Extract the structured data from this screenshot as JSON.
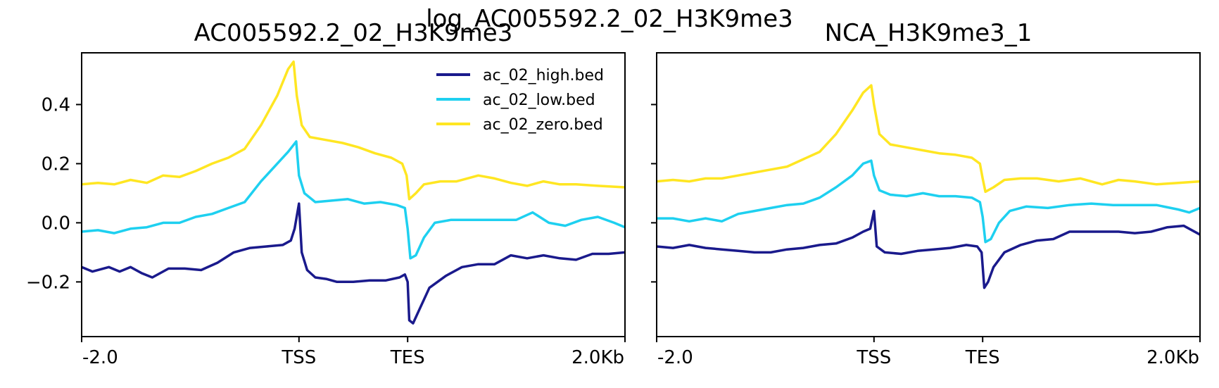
{
  "suptitle": "log_AC005592.2_02_H3K9me3",
  "chart_data": [
    {
      "type": "line",
      "title": "AC005592.2_02_H3K9me3",
      "x_tick_labels": [
        "-2.0",
        "TSS",
        "TES",
        "2.0Kb"
      ],
      "x_ticks": [
        0,
        0.4,
        0.6,
        1.0
      ],
      "xlim": [
        0,
        1
      ],
      "y_ticks": [
        -0.2,
        0.0,
        0.2,
        0.4
      ],
      "y_tick_labels": [
        "−0.2",
        "0.0",
        "0.2",
        "0.4"
      ],
      "ylim": [
        -0.385,
        0.575
      ],
      "legend": "top-right",
      "series": [
        {
          "name": "ac_02_high.bed",
          "color": "#1a1a8c",
          "points": [
            [
              0,
              -0.15
            ],
            [
              0.02,
              -0.165
            ],
            [
              0.05,
              -0.15
            ],
            [
              0.07,
              -0.165
            ],
            [
              0.09,
              -0.15
            ],
            [
              0.11,
              -0.17
            ],
            [
              0.13,
              -0.185
            ],
            [
              0.16,
              -0.155
            ],
            [
              0.19,
              -0.155
            ],
            [
              0.22,
              -0.16
            ],
            [
              0.25,
              -0.135
            ],
            [
              0.28,
              -0.1
            ],
            [
              0.31,
              -0.085
            ],
            [
              0.34,
              -0.08
            ],
            [
              0.37,
              -0.075
            ],
            [
              0.385,
              -0.06
            ],
            [
              0.392,
              -0.02
            ],
            [
              0.4,
              0.065
            ],
            [
              0.405,
              -0.1
            ],
            [
              0.415,
              -0.16
            ],
            [
              0.43,
              -0.185
            ],
            [
              0.45,
              -0.19
            ],
            [
              0.47,
              -0.2
            ],
            [
              0.5,
              -0.2
            ],
            [
              0.53,
              -0.195
            ],
            [
              0.56,
              -0.195
            ],
            [
              0.585,
              -0.185
            ],
            [
              0.595,
              -0.175
            ],
            [
              0.6,
              -0.2
            ],
            [
              0.603,
              -0.33
            ],
            [
              0.61,
              -0.34
            ],
            [
              0.62,
              -0.3
            ],
            [
              0.64,
              -0.22
            ],
            [
              0.67,
              -0.18
            ],
            [
              0.7,
              -0.15
            ],
            [
              0.73,
              -0.14
            ],
            [
              0.76,
              -0.14
            ],
            [
              0.79,
              -0.11
            ],
            [
              0.82,
              -0.12
            ],
            [
              0.85,
              -0.11
            ],
            [
              0.88,
              -0.12
            ],
            [
              0.91,
              -0.125
            ],
            [
              0.94,
              -0.105
            ],
            [
              0.97,
              -0.105
            ],
            [
              1.0,
              -0.1
            ]
          ]
        },
        {
          "name": "ac_02_low.bed",
          "color": "#1ed0f0",
          "points": [
            [
              0,
              -0.03
            ],
            [
              0.03,
              -0.025
            ],
            [
              0.06,
              -0.035
            ],
            [
              0.09,
              -0.02
            ],
            [
              0.12,
              -0.015
            ],
            [
              0.15,
              0.0
            ],
            [
              0.18,
              0.0
            ],
            [
              0.21,
              0.02
            ],
            [
              0.24,
              0.03
            ],
            [
              0.27,
              0.05
            ],
            [
              0.3,
              0.07
            ],
            [
              0.33,
              0.14
            ],
            [
              0.36,
              0.2
            ],
            [
              0.38,
              0.24
            ],
            [
              0.395,
              0.275
            ],
            [
              0.4,
              0.16
            ],
            [
              0.41,
              0.1
            ],
            [
              0.43,
              0.07
            ],
            [
              0.46,
              0.075
            ],
            [
              0.49,
              0.08
            ],
            [
              0.52,
              0.065
            ],
            [
              0.55,
              0.07
            ],
            [
              0.58,
              0.06
            ],
            [
              0.595,
              0.05
            ],
            [
              0.6,
              -0.02
            ],
            [
              0.605,
              -0.12
            ],
            [
              0.615,
              -0.11
            ],
            [
              0.63,
              -0.05
            ],
            [
              0.65,
              0.0
            ],
            [
              0.68,
              0.01
            ],
            [
              0.72,
              0.01
            ],
            [
              0.76,
              0.01
            ],
            [
              0.8,
              0.01
            ],
            [
              0.83,
              0.035
            ],
            [
              0.86,
              0.0
            ],
            [
              0.89,
              -0.01
            ],
            [
              0.92,
              0.01
            ],
            [
              0.95,
              0.02
            ],
            [
              0.98,
              0.0
            ],
            [
              1.0,
              -0.015
            ]
          ]
        },
        {
          "name": "ac_02_zero.bed",
          "color": "#ffe622",
          "points": [
            [
              0,
              0.13
            ],
            [
              0.03,
              0.135
            ],
            [
              0.06,
              0.13
            ],
            [
              0.09,
              0.145
            ],
            [
              0.12,
              0.135
            ],
            [
              0.15,
              0.16
            ],
            [
              0.18,
              0.155
            ],
            [
              0.21,
              0.175
            ],
            [
              0.24,
              0.2
            ],
            [
              0.27,
              0.22
            ],
            [
              0.3,
              0.25
            ],
            [
              0.33,
              0.33
            ],
            [
              0.36,
              0.43
            ],
            [
              0.38,
              0.52
            ],
            [
              0.39,
              0.545
            ],
            [
              0.396,
              0.43
            ],
            [
              0.405,
              0.33
            ],
            [
              0.42,
              0.29
            ],
            [
              0.45,
              0.28
            ],
            [
              0.48,
              0.27
            ],
            [
              0.51,
              0.255
            ],
            [
              0.54,
              0.235
            ],
            [
              0.57,
              0.22
            ],
            [
              0.59,
              0.2
            ],
            [
              0.598,
              0.16
            ],
            [
              0.603,
              0.08
            ],
            [
              0.615,
              0.1
            ],
            [
              0.63,
              0.13
            ],
            [
              0.66,
              0.14
            ],
            [
              0.69,
              0.14
            ],
            [
              0.73,
              0.16
            ],
            [
              0.76,
              0.15
            ],
            [
              0.79,
              0.135
            ],
            [
              0.82,
              0.125
            ],
            [
              0.85,
              0.14
            ],
            [
              0.88,
              0.13
            ],
            [
              0.91,
              0.13
            ],
            [
              0.95,
              0.125
            ],
            [
              1.0,
              0.12
            ]
          ]
        }
      ]
    },
    {
      "type": "line",
      "title": "NCA_H3K9me3_1",
      "x_tick_labels": [
        "-2.0",
        "TSS",
        "TES",
        "2.0Kb"
      ],
      "x_ticks": [
        0,
        0.4,
        0.6,
        1.0
      ],
      "xlim": [
        0,
        1
      ],
      "y_ticks": [
        -0.2,
        0.0,
        0.2,
        0.4
      ],
      "ylim": [
        -0.385,
        0.575
      ],
      "series": [
        {
          "name": "ac_02_high.bed",
          "color": "#1a1a8c",
          "points": [
            [
              0,
              -0.08
            ],
            [
              0.03,
              -0.085
            ],
            [
              0.06,
              -0.075
            ],
            [
              0.09,
              -0.085
            ],
            [
              0.12,
              -0.09
            ],
            [
              0.15,
              -0.095
            ],
            [
              0.18,
              -0.1
            ],
            [
              0.21,
              -0.1
            ],
            [
              0.24,
              -0.09
            ],
            [
              0.27,
              -0.085
            ],
            [
              0.3,
              -0.075
            ],
            [
              0.33,
              -0.07
            ],
            [
              0.36,
              -0.05
            ],
            [
              0.38,
              -0.03
            ],
            [
              0.393,
              -0.02
            ],
            [
              0.4,
              0.04
            ],
            [
              0.405,
              -0.08
            ],
            [
              0.42,
              -0.1
            ],
            [
              0.45,
              -0.105
            ],
            [
              0.48,
              -0.095
            ],
            [
              0.51,
              -0.09
            ],
            [
              0.54,
              -0.085
            ],
            [
              0.57,
              -0.075
            ],
            [
              0.59,
              -0.08
            ],
            [
              0.598,
              -0.1
            ],
            [
              0.603,
              -0.22
            ],
            [
              0.61,
              -0.2
            ],
            [
              0.62,
              -0.15
            ],
            [
              0.64,
              -0.1
            ],
            [
              0.67,
              -0.075
            ],
            [
              0.7,
              -0.06
            ],
            [
              0.73,
              -0.055
            ],
            [
              0.76,
              -0.03
            ],
            [
              0.79,
              -0.03
            ],
            [
              0.82,
              -0.03
            ],
            [
              0.85,
              -0.03
            ],
            [
              0.88,
              -0.035
            ],
            [
              0.91,
              -0.03
            ],
            [
              0.94,
              -0.015
            ],
            [
              0.97,
              -0.01
            ],
            [
              1.0,
              -0.04
            ]
          ]
        },
        {
          "name": "ac_02_low.bed",
          "color": "#1ed0f0",
          "points": [
            [
              0,
              0.015
            ],
            [
              0.03,
              0.015
            ],
            [
              0.06,
              0.005
            ],
            [
              0.09,
              0.015
            ],
            [
              0.12,
              0.005
            ],
            [
              0.15,
              0.03
            ],
            [
              0.18,
              0.04
            ],
            [
              0.21,
              0.05
            ],
            [
              0.24,
              0.06
            ],
            [
              0.27,
              0.065
            ],
            [
              0.3,
              0.085
            ],
            [
              0.33,
              0.12
            ],
            [
              0.36,
              0.16
            ],
            [
              0.38,
              0.2
            ],
            [
              0.395,
              0.21
            ],
            [
              0.4,
              0.16
            ],
            [
              0.41,
              0.11
            ],
            [
              0.43,
              0.095
            ],
            [
              0.46,
              0.09
            ],
            [
              0.49,
              0.1
            ],
            [
              0.52,
              0.09
            ],
            [
              0.55,
              0.09
            ],
            [
              0.58,
              0.085
            ],
            [
              0.595,
              0.07
            ],
            [
              0.6,
              0.02
            ],
            [
              0.605,
              -0.065
            ],
            [
              0.615,
              -0.055
            ],
            [
              0.63,
              0.0
            ],
            [
              0.65,
              0.04
            ],
            [
              0.68,
              0.055
            ],
            [
              0.72,
              0.05
            ],
            [
              0.76,
              0.06
            ],
            [
              0.8,
              0.065
            ],
            [
              0.84,
              0.06
            ],
            [
              0.88,
              0.06
            ],
            [
              0.92,
              0.06
            ],
            [
              0.96,
              0.045
            ],
            [
              0.98,
              0.035
            ],
            [
              1.0,
              0.05
            ]
          ]
        },
        {
          "name": "ac_02_zero.bed",
          "color": "#ffe622",
          "points": [
            [
              0,
              0.14
            ],
            [
              0.03,
              0.145
            ],
            [
              0.06,
              0.14
            ],
            [
              0.09,
              0.15
            ],
            [
              0.12,
              0.15
            ],
            [
              0.15,
              0.16
            ],
            [
              0.18,
              0.17
            ],
            [
              0.21,
              0.18
            ],
            [
              0.24,
              0.19
            ],
            [
              0.27,
              0.215
            ],
            [
              0.3,
              0.24
            ],
            [
              0.33,
              0.3
            ],
            [
              0.36,
              0.38
            ],
            [
              0.38,
              0.44
            ],
            [
              0.395,
              0.465
            ],
            [
              0.4,
              0.4
            ],
            [
              0.41,
              0.3
            ],
            [
              0.43,
              0.265
            ],
            [
              0.46,
              0.255
            ],
            [
              0.49,
              0.245
            ],
            [
              0.52,
              0.235
            ],
            [
              0.55,
              0.23
            ],
            [
              0.58,
              0.22
            ],
            [
              0.595,
              0.2
            ],
            [
              0.6,
              0.15
            ],
            [
              0.605,
              0.105
            ],
            [
              0.62,
              0.12
            ],
            [
              0.64,
              0.145
            ],
            [
              0.67,
              0.15
            ],
            [
              0.7,
              0.15
            ],
            [
              0.74,
              0.14
            ],
            [
              0.78,
              0.15
            ],
            [
              0.82,
              0.13
            ],
            [
              0.85,
              0.145
            ],
            [
              0.88,
              0.14
            ],
            [
              0.92,
              0.13
            ],
            [
              0.96,
              0.135
            ],
            [
              1.0,
              0.14
            ]
          ]
        }
      ]
    }
  ]
}
